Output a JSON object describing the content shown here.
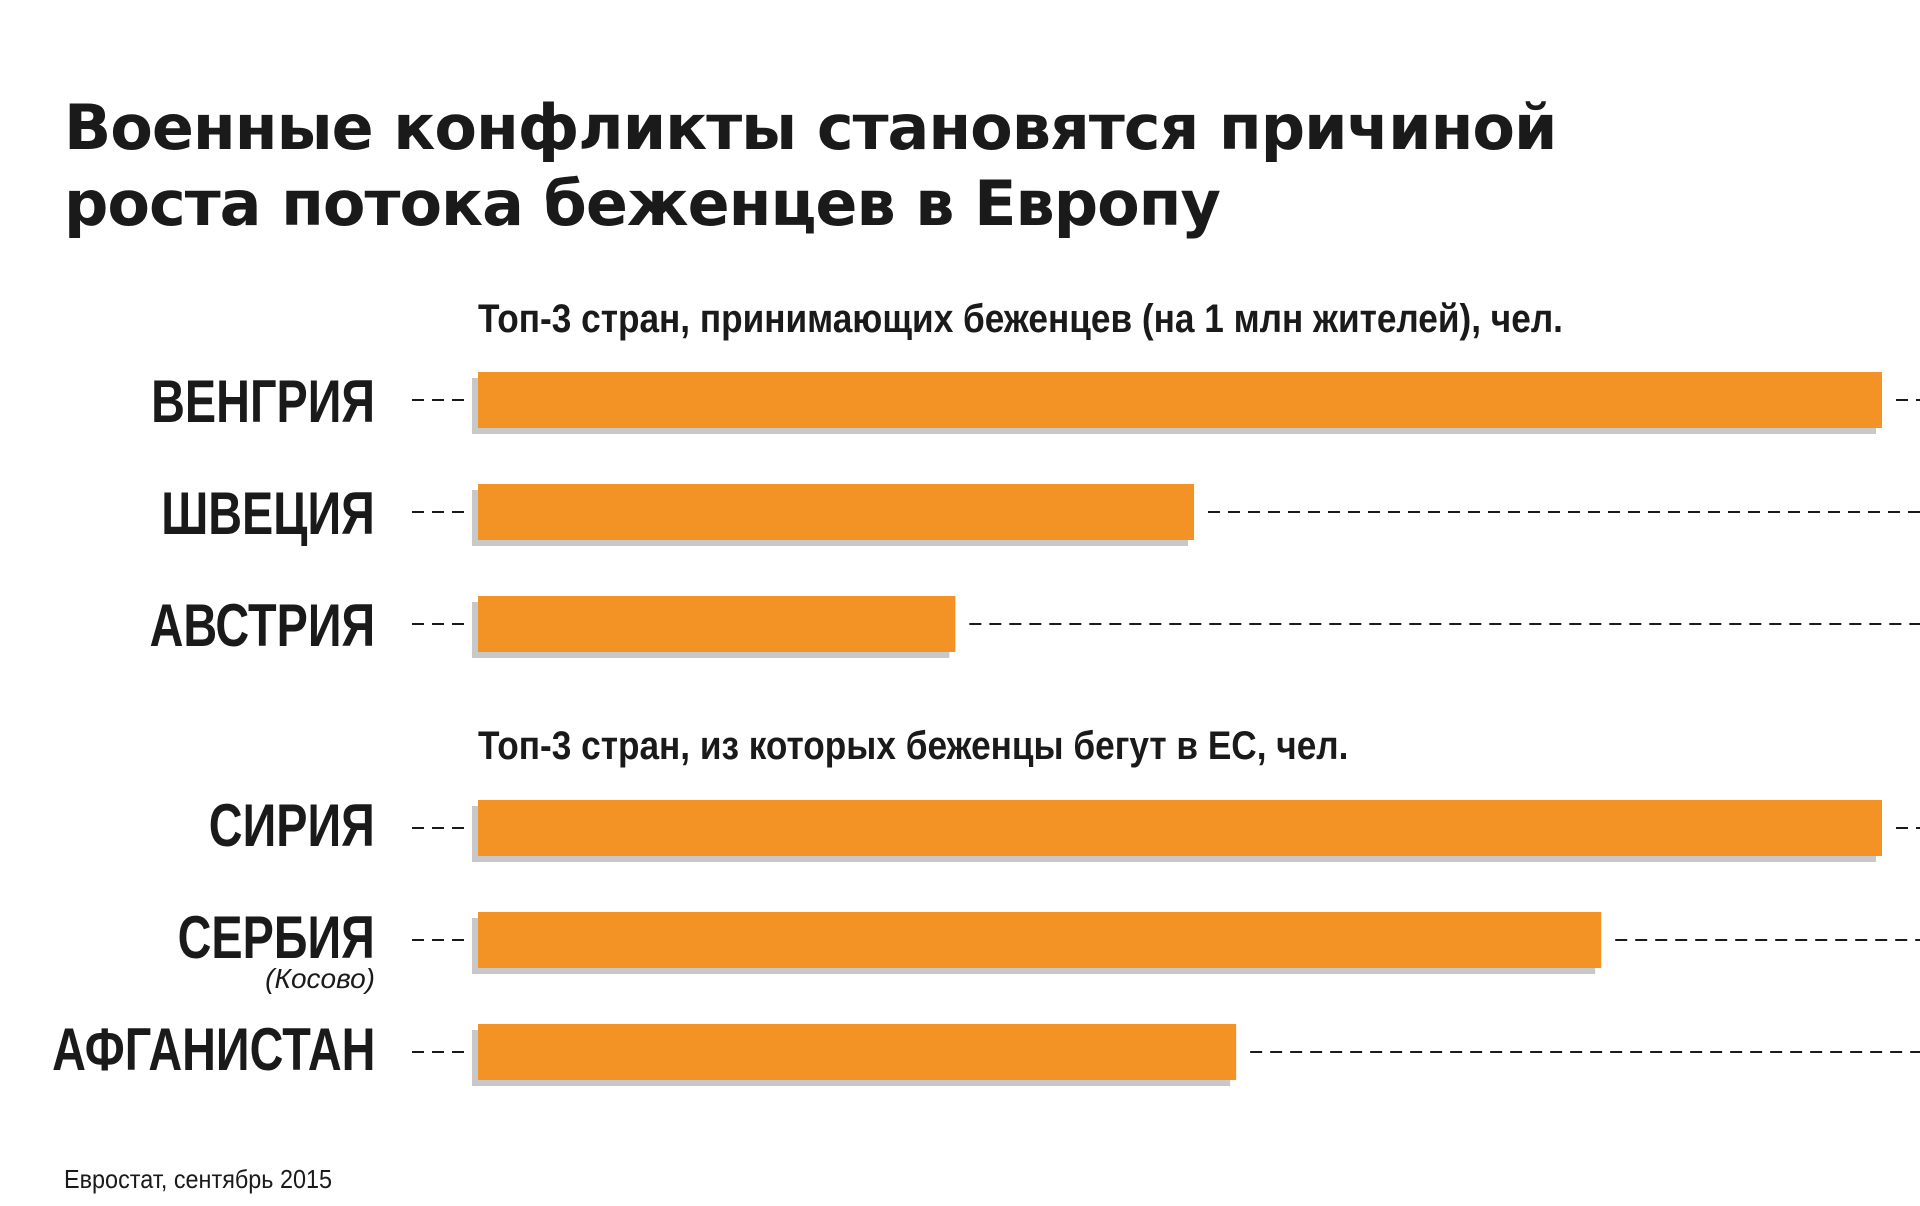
{
  "title_line1": "Военные конфликты становятся причиной",
  "title_line2": "роста потока беженцев в Европу",
  "source": "Евростат, сентябрь 2015",
  "colors": {
    "bar": "#f39325",
    "shadow": "#9a9a9a",
    "dash": "#1a1a1a",
    "text": "#1a1a1a"
  },
  "chart_data": [
    {
      "type": "bar",
      "title": "Топ-3 стран, принимающих беженцев (на 1 млн жителей), чел.",
      "orientation": "horizontal",
      "categories": [
        "ВЕНГРИЯ",
        "ШВЕЦИЯ",
        "АВСТРИЯ"
      ],
      "values": [
        100,
        51,
        34
      ],
      "value_scale": "relative (no axis values printed)",
      "grid": false
    },
    {
      "type": "bar",
      "title": "Топ-3 стран, из которых беженцы бегут в ЕС, чел.",
      "orientation": "horizontal",
      "categories": [
        "СИРИЯ",
        "СЕРБИЯ",
        "АФГАНИСТАН"
      ],
      "category_notes": [
        "",
        "(Косово)",
        ""
      ],
      "values": [
        100,
        80,
        54
      ],
      "value_scale": "relative (no axis values printed)",
      "grid": false
    }
  ]
}
